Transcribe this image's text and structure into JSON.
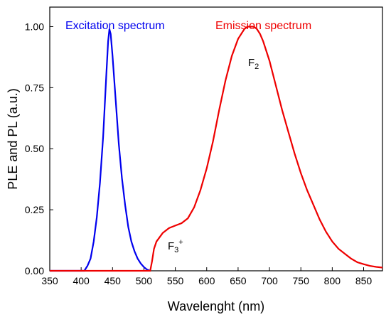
{
  "chart_data": {
    "type": "line",
    "xlabel": "Wavelenght (nm)",
    "ylabel": "PLE and PL (a.u.)",
    "xlim": [
      350,
      880
    ],
    "ylim": [
      0,
      1.08
    ],
    "grid": false,
    "x_ticks": [
      350,
      400,
      450,
      500,
      550,
      600,
      650,
      700,
      750,
      800,
      850
    ],
    "y_ticks": [
      "0.00",
      "0.25",
      "0.50",
      "0.75",
      "1.00"
    ],
    "series": [
      {
        "name": "Excitation spectrum",
        "color": "#0000ee",
        "x": [
          350,
          405,
          410,
          415,
          420,
          425,
          430,
          435,
          440,
          443,
          445,
          447,
          450,
          455,
          460,
          465,
          470,
          475,
          480,
          485,
          490,
          495,
          500,
          505,
          510
        ],
        "y": [
          0.0,
          0.0,
          0.02,
          0.05,
          0.12,
          0.22,
          0.36,
          0.55,
          0.8,
          0.94,
          0.99,
          0.97,
          0.88,
          0.7,
          0.52,
          0.38,
          0.27,
          0.18,
          0.12,
          0.08,
          0.05,
          0.03,
          0.015,
          0.005,
          0.0
        ]
      },
      {
        "name": "Emission spectrum",
        "color": "#ee0000",
        "x": [
          350,
          510,
          513,
          516,
          520,
          530,
          540,
          550,
          560,
          570,
          580,
          590,
          600,
          610,
          620,
          630,
          640,
          650,
          660,
          665,
          670,
          675,
          680,
          685,
          690,
          700,
          710,
          720,
          730,
          740,
          750,
          760,
          770,
          780,
          790,
          800,
          810,
          820,
          830,
          840,
          850,
          860,
          870,
          880
        ],
        "y": [
          0.0,
          0.0,
          0.04,
          0.09,
          0.12,
          0.155,
          0.175,
          0.185,
          0.195,
          0.215,
          0.26,
          0.33,
          0.42,
          0.53,
          0.66,
          0.78,
          0.88,
          0.95,
          0.99,
          1.0,
          1.0,
          1.0,
          0.99,
          0.97,
          0.94,
          0.86,
          0.76,
          0.66,
          0.57,
          0.48,
          0.4,
          0.33,
          0.27,
          0.21,
          0.16,
          0.12,
          0.09,
          0.07,
          0.05,
          0.035,
          0.027,
          0.02,
          0.016,
          0.013
        ]
      }
    ],
    "annotations": {
      "f2_main": "F",
      "f2_sub": "2",
      "f3_main": "F",
      "f3_sub": "3",
      "f3_sup": "+"
    }
  }
}
